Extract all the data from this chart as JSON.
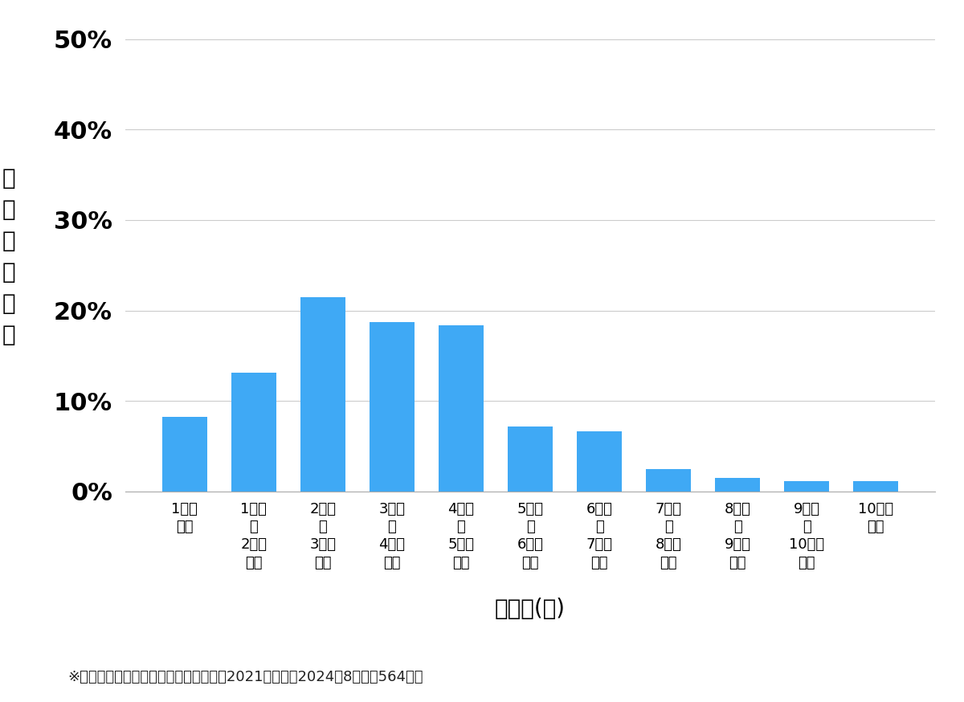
{
  "categories": [
    "1万円\n未満",
    "1万円\n〜\n2万円\n未満",
    "2万円\n〜\n3万円\n未満",
    "3万円\n〜\n4万円\n未満",
    "4万円\n〜\n5万円\n未満",
    "5万円\n〜\n6万円\n未満",
    "6万円\n〜\n7万円\n未満",
    "7万円\n〜\n8万円\n未満",
    "8万円\n〜\n9万円\n未満",
    "9万円\n〜\n10万円\n未満",
    "10万円\n以上"
  ],
  "values": [
    0.082,
    0.131,
    0.215,
    0.187,
    0.184,
    0.072,
    0.066,
    0.025,
    0.015,
    0.011,
    0.011
  ],
  "bar_color": "#3fa9f5",
  "ylabel_chars": [
    "価",
    "格",
    "帯",
    "の",
    "割",
    "合"
  ],
  "xlabel": "価格帯(円)",
  "footnote": "※弊社受付の案件を対象に集計（期間：2021年１月〜2024年8月、計564件）",
  "yticks": [
    0.0,
    0.1,
    0.2,
    0.3,
    0.4,
    0.5
  ],
  "ytick_labels": [
    "0%",
    "10%",
    "20%",
    "30%",
    "40%",
    "50%"
  ],
  "ylim": [
    0,
    0.52
  ],
  "background_color": "#ffffff",
  "grid_color": "#cccccc",
  "ytick_fontsize": 22,
  "xtick_fontsize": 13,
  "xlabel_fontsize": 20,
  "ylabel_fontsize": 20,
  "footnote_fontsize": 13
}
